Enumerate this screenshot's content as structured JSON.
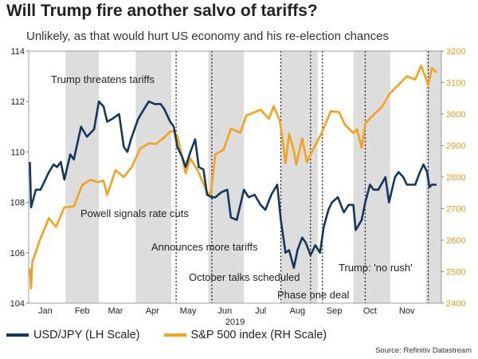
{
  "title": "Will Trump fire another salvo of tariffs?",
  "subtitle": "Unlikely, as that would hurt US economy and his re-election chances",
  "source": "Source: Refinitiv Datastream",
  "colors": {
    "usdjpy": "#14375e",
    "spx": "#f5a21b",
    "shade": "#dddddd",
    "axis_right": "#e69a1a"
  },
  "chart_data": {
    "type": "line",
    "xlabel": "2019",
    "x_ticks": [
      "Jan",
      "Feb",
      "Mar",
      "Apr",
      "May",
      "Jun",
      "Jul",
      "Aug",
      "Sep",
      "Oct",
      "Nov"
    ],
    "y_left": {
      "min": 104,
      "max": 114,
      "ticks": [
        104,
        106,
        108,
        110,
        112,
        114
      ]
    },
    "y_right": {
      "min": 2400,
      "max": 3200,
      "ticks": [
        2400,
        2500,
        2600,
        2700,
        2800,
        2900,
        3000,
        3100,
        3200
      ]
    },
    "shaded_months": [
      "Feb",
      "Apr",
      "Jun",
      "Aug",
      "Oct",
      "Dec"
    ],
    "event_dates": [
      "2019-05-05",
      "2019-06-04",
      "2019-08-01",
      "2019-08-26",
      "2019-09-05",
      "2019-10-11",
      "2019-12-03"
    ],
    "annotations": [
      "Trump threatens tariffs",
      "Powell signals rate cuts",
      "Announces more tariffs",
      "October talks scheduled",
      "Phase one deal",
      "Trump: 'no rush'"
    ],
    "series": [
      {
        "name": "USD/JPY (LH Scale)",
        "axis": "left",
        "points": [
          [
            "2019-01-02",
            109.6
          ],
          [
            "2019-01-03",
            107.8
          ],
          [
            "2019-01-07",
            108.5
          ],
          [
            "2019-01-11",
            108.5
          ],
          [
            "2019-01-18",
            109.2
          ],
          [
            "2019-01-22",
            109.5
          ],
          [
            "2019-01-25",
            109.4
          ],
          [
            "2019-01-28",
            109.6
          ],
          [
            "2019-01-31",
            108.9
          ],
          [
            "2019-02-05",
            109.9
          ],
          [
            "2019-02-08",
            109.7
          ],
          [
            "2019-02-14",
            111.0
          ],
          [
            "2019-02-19",
            110.6
          ],
          [
            "2019-02-25",
            110.9
          ],
          [
            "2019-03-01",
            112.0
          ],
          [
            "2019-03-05",
            111.8
          ],
          [
            "2019-03-08",
            111.2
          ],
          [
            "2019-03-12",
            111.3
          ],
          [
            "2019-03-18",
            111.5
          ],
          [
            "2019-03-22",
            110.2
          ],
          [
            "2019-03-25",
            110.0
          ],
          [
            "2019-03-28",
            110.5
          ],
          [
            "2019-04-03",
            111.3
          ],
          [
            "2019-04-08",
            111.7
          ],
          [
            "2019-04-12",
            112.0
          ],
          [
            "2019-04-17",
            111.9
          ],
          [
            "2019-04-22",
            111.9
          ],
          [
            "2019-04-25",
            111.7
          ],
          [
            "2019-04-30",
            111.2
          ],
          [
            "2019-05-03",
            111.0
          ],
          [
            "2019-05-06",
            110.2
          ],
          [
            "2019-05-10",
            109.8
          ],
          [
            "2019-05-13",
            109.4
          ],
          [
            "2019-05-17",
            110.0
          ],
          [
            "2019-05-21",
            110.5
          ],
          [
            "2019-05-24",
            109.4
          ],
          [
            "2019-05-28",
            109.3
          ],
          [
            "2019-05-31",
            108.3
          ],
          [
            "2019-06-04",
            108.2
          ],
          [
            "2019-06-07",
            108.2
          ],
          [
            "2019-06-12",
            108.4
          ],
          [
            "2019-06-17",
            108.5
          ],
          [
            "2019-06-20",
            107.4
          ],
          [
            "2019-06-25",
            107.3
          ],
          [
            "2019-07-01",
            108.5
          ],
          [
            "2019-07-05",
            108.2
          ],
          [
            "2019-07-10",
            108.3
          ],
          [
            "2019-07-15",
            107.9
          ],
          [
            "2019-07-19",
            107.7
          ],
          [
            "2019-07-24",
            108.3
          ],
          [
            "2019-07-29",
            108.7
          ],
          [
            "2019-08-01",
            107.3
          ],
          [
            "2019-08-05",
            106.0
          ],
          [
            "2019-08-08",
            106.1
          ],
          [
            "2019-08-12",
            105.4
          ],
          [
            "2019-08-15",
            106.1
          ],
          [
            "2019-08-19",
            106.6
          ],
          [
            "2019-08-22",
            106.4
          ],
          [
            "2019-08-26",
            105.9
          ],
          [
            "2019-08-30",
            106.3
          ],
          [
            "2019-09-03",
            106.0
          ],
          [
            "2019-09-06",
            107.0
          ],
          [
            "2019-09-10",
            107.7
          ],
          [
            "2019-09-13",
            108.0
          ],
          [
            "2019-09-18",
            108.2
          ],
          [
            "2019-09-23",
            107.6
          ],
          [
            "2019-09-27",
            107.9
          ],
          [
            "2019-10-01",
            107.9
          ],
          [
            "2019-10-03",
            106.9
          ],
          [
            "2019-10-08",
            107.3
          ],
          [
            "2019-10-11",
            108.0
          ],
          [
            "2019-10-15",
            108.7
          ],
          [
            "2019-10-18",
            108.5
          ],
          [
            "2019-10-22",
            108.5
          ],
          [
            "2019-10-28",
            109.0
          ],
          [
            "2019-10-31",
            108.0
          ],
          [
            "2019-11-05",
            109.0
          ],
          [
            "2019-11-08",
            109.2
          ],
          [
            "2019-11-12",
            109.0
          ],
          [
            "2019-11-15",
            108.7
          ],
          [
            "2019-11-19",
            108.7
          ],
          [
            "2019-11-22",
            108.7
          ],
          [
            "2019-11-26",
            109.2
          ],
          [
            "2019-11-29",
            109.5
          ],
          [
            "2019-12-02",
            109.2
          ],
          [
            "2019-12-04",
            108.6
          ],
          [
            "2019-12-06",
            108.7
          ],
          [
            "2019-12-10",
            108.7
          ]
        ]
      },
      {
        "name": "S&P 500 index (RH Scale)",
        "axis": "right",
        "points": [
          [
            "2019-01-02",
            2510
          ],
          [
            "2019-01-03",
            2447
          ],
          [
            "2019-01-04",
            2530
          ],
          [
            "2019-01-10",
            2596
          ],
          [
            "2019-01-18",
            2670
          ],
          [
            "2019-01-24",
            2642
          ],
          [
            "2019-01-31",
            2704
          ],
          [
            "2019-02-08",
            2707
          ],
          [
            "2019-02-15",
            2775
          ],
          [
            "2019-02-22",
            2792
          ],
          [
            "2019-02-28",
            2784
          ],
          [
            "2019-03-05",
            2789
          ],
          [
            "2019-03-08",
            2743
          ],
          [
            "2019-03-15",
            2822
          ],
          [
            "2019-03-22",
            2800
          ],
          [
            "2019-03-29",
            2834
          ],
          [
            "2019-04-05",
            2892
          ],
          [
            "2019-04-12",
            2907
          ],
          [
            "2019-04-18",
            2905
          ],
          [
            "2019-04-25",
            2926
          ],
          [
            "2019-04-30",
            2945
          ],
          [
            "2019-05-03",
            2945
          ],
          [
            "2019-05-06",
            2932
          ],
          [
            "2019-05-13",
            2812
          ],
          [
            "2019-05-17",
            2859
          ],
          [
            "2019-05-23",
            2822
          ],
          [
            "2019-05-31",
            2752
          ],
          [
            "2019-06-03",
            2744
          ],
          [
            "2019-06-07",
            2873
          ],
          [
            "2019-06-14",
            2887
          ],
          [
            "2019-06-20",
            2954
          ],
          [
            "2019-06-28",
            2941
          ],
          [
            "2019-07-03",
            2995
          ],
          [
            "2019-07-15",
            3014
          ],
          [
            "2019-07-22",
            2985
          ],
          [
            "2019-07-26",
            3025
          ],
          [
            "2019-07-31",
            2980
          ],
          [
            "2019-08-02",
            2932
          ],
          [
            "2019-08-05",
            2844
          ],
          [
            "2019-08-08",
            2938
          ],
          [
            "2019-08-12",
            2883
          ],
          [
            "2019-08-14",
            2840
          ],
          [
            "2019-08-19",
            2923
          ],
          [
            "2019-08-23",
            2847
          ],
          [
            "2019-08-28",
            2887
          ],
          [
            "2019-09-04",
            2937
          ],
          [
            "2019-09-12",
            3009
          ],
          [
            "2019-09-19",
            3006
          ],
          [
            "2019-09-24",
            2966
          ],
          [
            "2019-10-01",
            2940
          ],
          [
            "2019-10-04",
            2952
          ],
          [
            "2019-10-08",
            2893
          ],
          [
            "2019-10-11",
            2970
          ],
          [
            "2019-10-16",
            2990
          ],
          [
            "2019-10-25",
            3023
          ],
          [
            "2019-11-01",
            3067
          ],
          [
            "2019-11-08",
            3093
          ],
          [
            "2019-11-15",
            3120
          ],
          [
            "2019-11-22",
            3110
          ],
          [
            "2019-11-27",
            3154
          ],
          [
            "2019-12-03",
            3093
          ],
          [
            "2019-12-06",
            3146
          ],
          [
            "2019-12-10",
            3132
          ]
        ]
      }
    ]
  }
}
